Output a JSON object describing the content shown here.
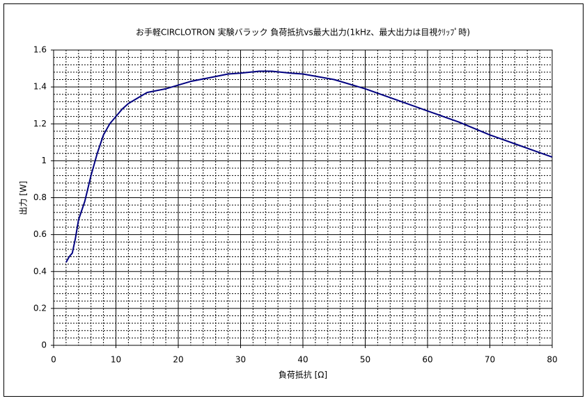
{
  "chart_data": {
    "type": "line",
    "title": "お手軽CIRCLOTRON 実験バラック 負荷抵抗vs最大出力(1kHz、最大出力は目視ｸﾘｯﾌﾟ時)",
    "x_label": "負荷抵抗 [Ω]",
    "y_label": "出力 [W]",
    "x": [
      2,
      2.5,
      3,
      3.5,
      4,
      5,
      6,
      7,
      8,
      9,
      10,
      11,
      12,
      14,
      15,
      18,
      20,
      22,
      25,
      28,
      30,
      33,
      35,
      38,
      40,
      45,
      50,
      55,
      60,
      65,
      70,
      75,
      80
    ],
    "series": [
      {
        "color": "#000080",
        "values": [
          0.45,
          0.48,
          0.5,
          0.58,
          0.68,
          0.78,
          0.92,
          1.04,
          1.14,
          1.2,
          1.24,
          1.28,
          1.31,
          1.35,
          1.37,
          1.39,
          1.41,
          1.43,
          1.45,
          1.47,
          1.475,
          1.485,
          1.485,
          1.475,
          1.47,
          1.44,
          1.39,
          1.33,
          1.27,
          1.21,
          1.14,
          1.08,
          1.02
        ]
      }
    ],
    "xlim": [
      0,
      80
    ],
    "xticks": [
      0,
      10,
      20,
      30,
      40,
      50,
      60,
      70,
      80
    ],
    "ylim": [
      0,
      1.6
    ],
    "yticks": [
      0,
      0.2,
      0.4,
      0.6,
      0.8,
      1,
      1.2,
      1.4,
      1.6
    ],
    "grid": true,
    "minor_grid": true
  }
}
